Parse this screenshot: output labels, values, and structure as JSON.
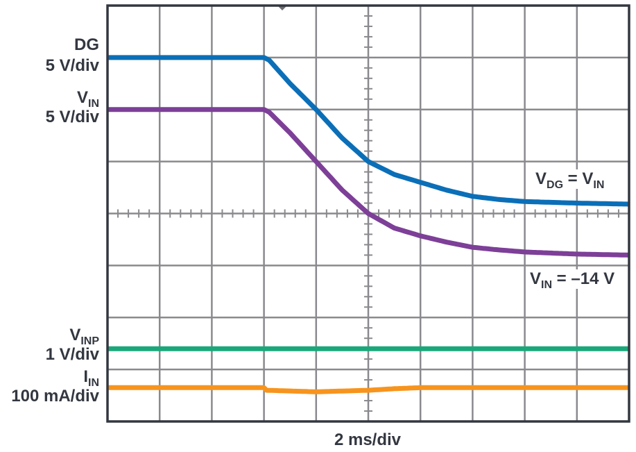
{
  "chart_data": {
    "type": "line",
    "title": "",
    "xlabel": "2 ms/div",
    "ylabel": "",
    "grid": true,
    "x_divisions": 10,
    "y_divisions": 8,
    "x_unit": "div (2 ms/div)",
    "y_unit": "div",
    "xlim": [
      0,
      10
    ],
    "ylim": [
      0,
      8
    ],
    "series": [
      {
        "name": "DG",
        "scale": "5 V/div",
        "color": "#0b6fb8",
        "x": [
          0,
          1,
          2,
          3,
          3.1,
          3.5,
          4,
          4.5,
          5,
          5.5,
          6,
          6.5,
          7,
          7.5,
          8,
          9,
          10
        ],
        "y": [
          7.0,
          7.0,
          7.0,
          7.0,
          6.95,
          6.5,
          6.0,
          5.45,
          5.0,
          4.75,
          4.6,
          4.45,
          4.33,
          4.27,
          4.23,
          4.2,
          4.18
        ]
      },
      {
        "name": "VIN",
        "scale": "5 V/div",
        "color": "#7d3f98",
        "x": [
          0,
          1,
          2,
          3,
          3.1,
          3.5,
          4,
          4.5,
          5,
          5.5,
          6,
          6.5,
          7,
          7.5,
          8,
          9,
          10
        ],
        "y": [
          6.0,
          6.0,
          6.0,
          6.0,
          5.95,
          5.55,
          5.0,
          4.45,
          4.0,
          3.72,
          3.57,
          3.45,
          3.35,
          3.3,
          3.26,
          3.22,
          3.2
        ]
      },
      {
        "name": "VINP",
        "scale": "1 V/div",
        "color": "#1aa87a",
        "x": [
          0,
          10
        ],
        "y": [
          1.4,
          1.4
        ]
      },
      {
        "name": "IIN",
        "scale": "100 mA/div",
        "color": "#f7941d",
        "x": [
          0,
          3,
          3.05,
          4,
          5,
          5.5,
          6,
          10
        ],
        "y": [
          0.65,
          0.65,
          0.6,
          0.57,
          0.6,
          0.63,
          0.65,
          0.65
        ]
      }
    ],
    "channel_labels": [
      {
        "name": "DG",
        "scale": "5 V/div"
      },
      {
        "name": "VIN",
        "scale": "5 V/div"
      },
      {
        "name": "VINP",
        "scale": "1 V/div"
      },
      {
        "name": "IIN",
        "scale": "100 mA/div"
      }
    ],
    "annotations": [
      "VDG = VIN",
      "VIN = −14 V"
    ],
    "trigger_marker_x_div": 3.35
  },
  "labels": {
    "dg": {
      "main": "DG",
      "scale": "5 V/div"
    },
    "vin": {
      "main": "V",
      "sub": "IN",
      "scale": "5 V/div"
    },
    "vinp": {
      "main": "V",
      "sub": "INP",
      "scale": "1 V/div"
    },
    "iin": {
      "main": "I",
      "sub": "IN",
      "scale": "100 mA/div"
    }
  },
  "annotations": {
    "vdg": {
      "a": "V",
      "a_sub": "DG",
      "eq": " = ",
      "b": "V",
      "b_sub": "IN"
    },
    "vin": {
      "a": "V",
      "a_sub": "IN",
      "rest": " = –14 V"
    }
  },
  "xlabel": "2 ms/div",
  "style": {
    "grid_color": "#8a8a8e",
    "frame_color": "#333740"
  }
}
